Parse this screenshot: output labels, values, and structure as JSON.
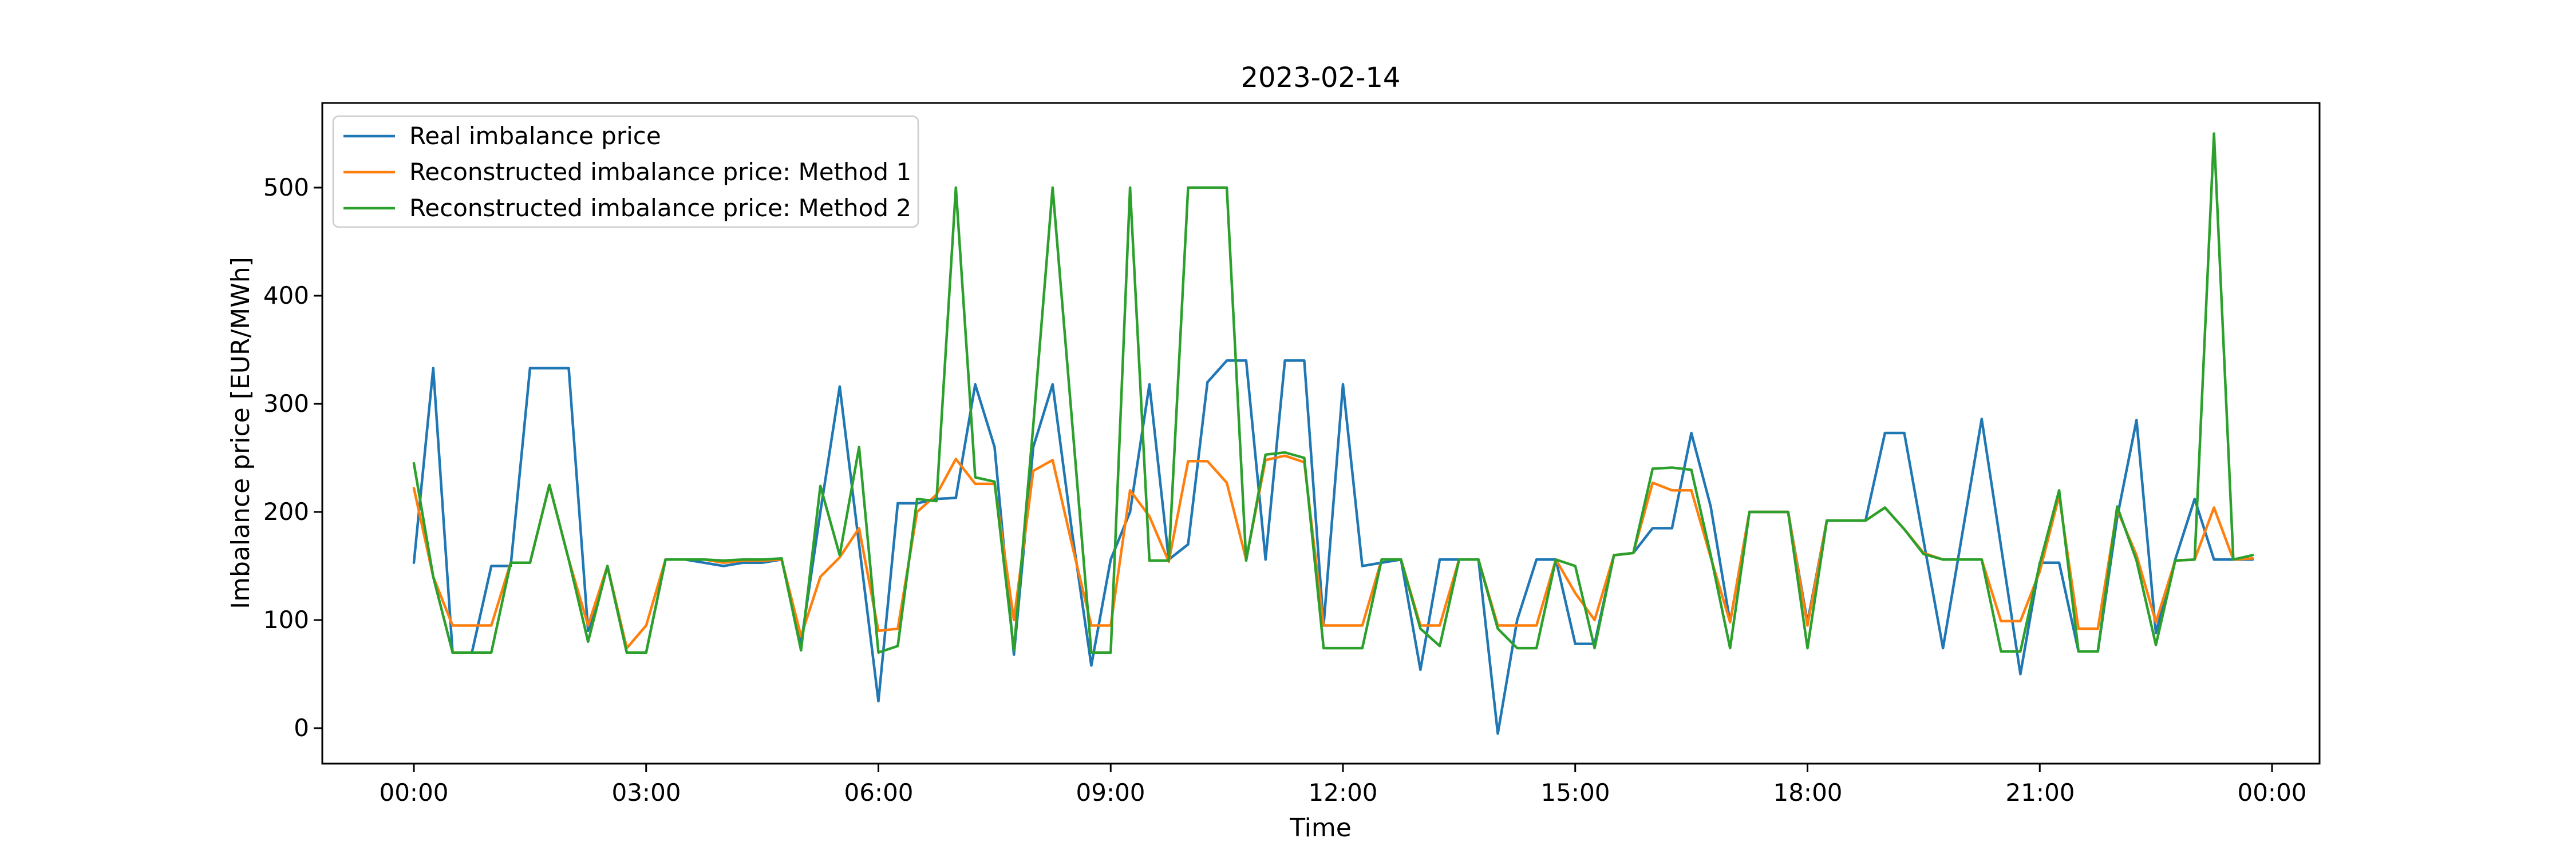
{
  "title": "2023-02-14",
  "chart_data": {
    "type": "line",
    "title": "2023-02-14",
    "xlabel": "Time",
    "ylabel": "Imbalance price [EUR/MWh]",
    "x_unit": "time of day, 15-minute resolution starting 00:00",
    "x_tick_labels": [
      "00:00",
      "03:00",
      "06:00",
      "09:00",
      "12:00",
      "15:00",
      "18:00",
      "21:00",
      "00:00"
    ],
    "x_tick_hours": [
      0,
      3,
      6,
      9,
      12,
      15,
      18,
      21,
      24
    ],
    "y_ticks": [
      0,
      100,
      200,
      300,
      400,
      500
    ],
    "ylim": [
      -33,
      578
    ],
    "grid": false,
    "legend_position": "upper left",
    "series": [
      {
        "name": "Real imbalance price",
        "color": "#1f77b4",
        "values": [
          153,
          333,
          70,
          70,
          150,
          150,
          333,
          333,
          333,
          90,
          150,
          70,
          70,
          156,
          156,
          153,
          150,
          153,
          153,
          156,
          78,
          200,
          316,
          170,
          25,
          208,
          208,
          212,
          213,
          318,
          260,
          68,
          260,
          318,
          182,
          58,
          156,
          200,
          318,
          156,
          170,
          320,
          340,
          340,
          156,
          340,
          340,
          95,
          318,
          150,
          153,
          156,
          54,
          156,
          156,
          156,
          -5,
          100,
          156,
          156,
          78,
          78,
          160,
          162,
          185,
          185,
          273,
          205,
          98,
          200,
          200,
          200,
          98,
          192,
          192,
          192,
          273,
          273,
          173,
          74,
          180,
          286,
          168,
          50,
          153,
          153,
          71,
          71,
          195,
          285,
          88,
          156,
          212,
          156,
          156,
          156
        ]
      },
      {
        "name": "Reconstructed imbalance price: Method 1",
        "color": "#ff7f0e",
        "values": [
          222,
          140,
          95,
          95,
          95,
          153,
          153,
          225,
          156,
          95,
          150,
          74,
          95,
          156,
          156,
          156,
          153,
          155,
          155,
          156,
          85,
          140,
          158,
          185,
          90,
          92,
          200,
          216,
          249,
          226,
          226,
          100,
          238,
          248,
          170,
          95,
          95,
          220,
          196,
          154,
          247,
          247,
          227,
          156,
          248,
          252,
          246,
          95,
          95,
          95,
          156,
          156,
          95,
          95,
          156,
          156,
          95,
          95,
          95,
          156,
          125,
          100,
          160,
          162,
          227,
          220,
          220,
          158,
          98,
          200,
          200,
          200,
          95,
          192,
          192,
          192,
          204,
          184,
          162,
          156,
          156,
          156,
          99,
          99,
          145,
          215,
          92,
          92,
          202,
          160,
          98,
          155,
          156,
          204,
          156,
          157
        ]
      },
      {
        "name": "Reconstructed imbalance price: Method 2",
        "color": "#2ca02c",
        "values": [
          245,
          140,
          70,
          70,
          70,
          153,
          153,
          225,
          156,
          80,
          150,
          70,
          70,
          156,
          156,
          156,
          155,
          156,
          156,
          157,
          72,
          224,
          160,
          260,
          70,
          76,
          212,
          210,
          500,
          232,
          228,
          72,
          280,
          500,
          285,
          70,
          70,
          500,
          155,
          155,
          500,
          500,
          500,
          155,
          253,
          255,
          250,
          74,
          74,
          74,
          156,
          156,
          92,
          76,
          156,
          156,
          92,
          74,
          74,
          156,
          150,
          74,
          160,
          162,
          240,
          241,
          239,
          160,
          74,
          200,
          200,
          200,
          74,
          192,
          192,
          192,
          204,
          184,
          161,
          156,
          156,
          156,
          71,
          71,
          152,
          220,
          71,
          71,
          205,
          155,
          77,
          155,
          156,
          550,
          156,
          160
        ]
      }
    ]
  }
}
